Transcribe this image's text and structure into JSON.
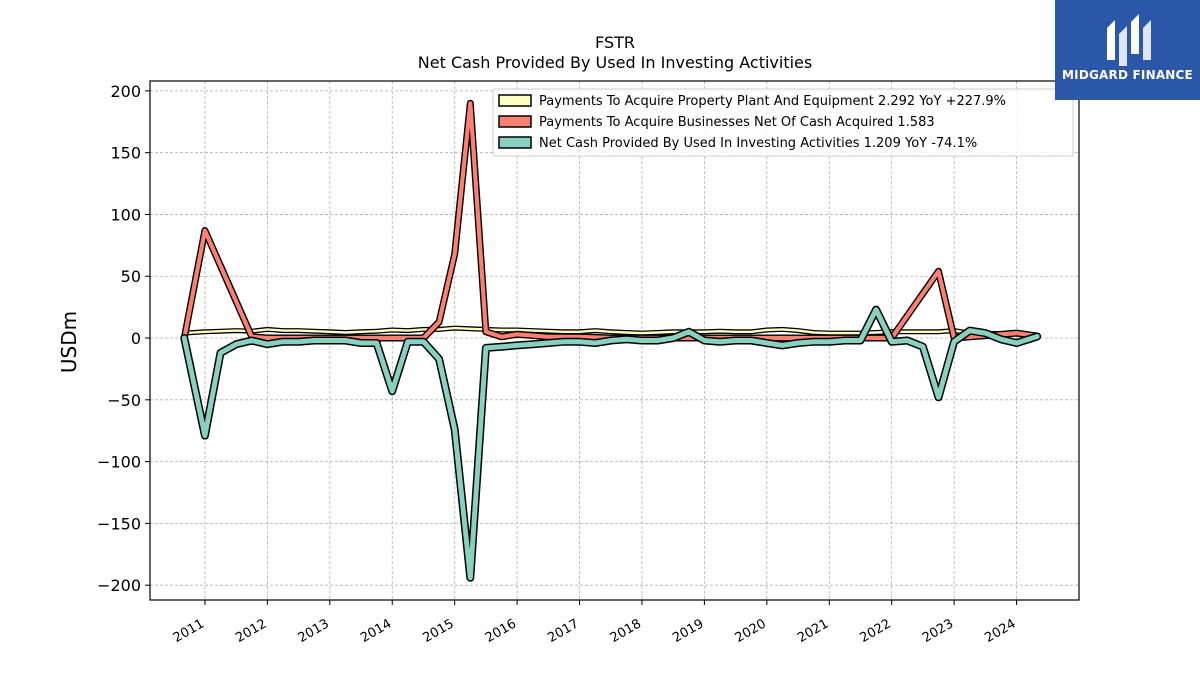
{
  "chart_data": {
    "type": "line",
    "title": "FSTR",
    "subtitle": "Net Cash Provided By Used In Investing Activities",
    "ylabel": "USDm",
    "ylim": [
      -212,
      208
    ],
    "xlim": [
      2010.12,
      2025.0
    ],
    "yticks": [
      200,
      150,
      100,
      50,
      0,
      -50,
      -100,
      -150,
      -200
    ],
    "ytick_labels": [
      "200",
      "150",
      "100",
      "50",
      "0",
      "−50",
      "−100",
      "−150",
      "−200"
    ],
    "xticks": [
      2011,
      2012,
      2013,
      2014,
      2015,
      2016,
      2017,
      2018,
      2019,
      2020,
      2021,
      2022,
      2023,
      2024
    ],
    "xtick_labels": [
      "2011",
      "2012",
      "2013",
      "2014",
      "2015",
      "2016",
      "2017",
      "2018",
      "2019",
      "2020",
      "2021",
      "2022",
      "2023",
      "2024"
    ],
    "grid": true,
    "legend_position": "top-right",
    "series": [
      {
        "name": "Payments To Acquire Property Plant And Equipment",
        "legend": "Payments To Acquire Property Plant And Equipment  2.292 YoY +227.9%",
        "color": "#ffffbf",
        "x": [
          2010.67,
          2011.0,
          2011.25,
          2011.5,
          2011.75,
          2012.0,
          2012.25,
          2012.5,
          2012.75,
          2013.0,
          2013.25,
          2013.5,
          2013.75,
          2014.0,
          2014.25,
          2014.5,
          2014.75,
          2015.0,
          2015.25,
          2015.5,
          2015.75,
          2016.0,
          2016.25,
          2016.5,
          2016.75,
          2017.0,
          2017.25,
          2017.5,
          2017.75,
          2018.0,
          2018.25,
          2018.5,
          2018.75,
          2019.0,
          2019.25,
          2019.5,
          2019.75,
          2020.0,
          2020.25,
          2020.5,
          2020.75,
          2021.0,
          2021.25,
          2021.5,
          2021.75,
          2022.0,
          2022.25,
          2022.5,
          2022.75,
          2023.0,
          2023.25,
          2023.5,
          2023.75,
          2024.0,
          2024.33
        ],
        "y": [
          4,
          5,
          5.5,
          6,
          5.5,
          7,
          6,
          6,
          5.5,
          5,
          4.5,
          5,
          5.5,
          6.5,
          6,
          7,
          7,
          8,
          7.5,
          7,
          6.5,
          6.5,
          6,
          5.5,
          5,
          5,
          6,
          5,
          4.5,
          4,
          4.5,
          5,
          5,
          5,
          5.5,
          5,
          5,
          6.5,
          7,
          6,
          4.5,
          4,
          4,
          4,
          4.5,
          5,
          5,
          5,
          5,
          6,
          4,
          4,
          3.5,
          4,
          2.3
        ]
      },
      {
        "name": "Payments To Acquire Businesses Net Of Cash Acquired",
        "legend": "Payments To Acquire Businesses Net Of Cash Acquired  1.583",
        "color": "#fa8072",
        "x": [
          2010.67,
          2011.0,
          2011.75,
          2012.0,
          2012.5,
          2013.0,
          2013.5,
          2014.0,
          2014.5,
          2014.75,
          2015.0,
          2015.25,
          2015.5,
          2015.75,
          2016.0,
          2016.5,
          2017.0,
          2017.5,
          2018.0,
          2018.5,
          2019.0,
          2019.5,
          2020.0,
          2020.5,
          2021.0,
          2021.5,
          2021.75,
          2022.0,
          2022.75,
          2023.0,
          2023.5,
          2024.0,
          2024.33
        ],
        "y": [
          0,
          87,
          1,
          0,
          0,
          0,
          0,
          0,
          0,
          13,
          68,
          190,
          5,
          1,
          3,
          1,
          1,
          0,
          0,
          0,
          0,
          0,
          0,
          0,
          0,
          0,
          0,
          0,
          54,
          0,
          2,
          4,
          1.6
        ]
      },
      {
        "name": "Net Cash Provided By Used In Investing Activities",
        "legend": "Net Cash Provided By Used In Investing Activities  1.209 YoY -74.1%",
        "color": "#88d0c0",
        "x": [
          2010.67,
          2011.0,
          2011.25,
          2011.5,
          2011.75,
          2012.0,
          2012.25,
          2012.5,
          2012.75,
          2013.0,
          2013.25,
          2013.5,
          2013.75,
          2014.0,
          2014.25,
          2014.5,
          2014.75,
          2015.0,
          2015.25,
          2015.5,
          2015.75,
          2016.0,
          2016.25,
          2016.5,
          2016.75,
          2017.0,
          2017.25,
          2017.5,
          2017.75,
          2018.0,
          2018.25,
          2018.5,
          2018.75,
          2019.0,
          2019.25,
          2019.5,
          2019.75,
          2020.0,
          2020.25,
          2020.5,
          2020.75,
          2021.0,
          2021.25,
          2021.5,
          2021.75,
          2022.0,
          2022.25,
          2022.5,
          2022.75,
          2023.0,
          2023.25,
          2023.5,
          2023.75,
          2024.0,
          2024.33
        ],
        "y": [
          0,
          -79,
          -12,
          -5,
          -2,
          -5,
          -3,
          -3,
          -2,
          -2,
          -2,
          -4,
          -4,
          -43,
          -3,
          -3,
          -17,
          -74,
          -194,
          -8,
          -7,
          -6,
          -5,
          -4,
          -3,
          -3,
          -4,
          -2,
          -1,
          -2,
          -2,
          0,
          5,
          -2,
          -3,
          -2,
          -2,
          -4,
          -6,
          -4,
          -3,
          -3,
          -2,
          -2,
          23,
          -3,
          -2,
          -7,
          -48,
          -3,
          6,
          4,
          -1,
          -4,
          1.2
        ]
      }
    ]
  },
  "logo": {
    "text": "MIDGARD FINANCE"
  }
}
